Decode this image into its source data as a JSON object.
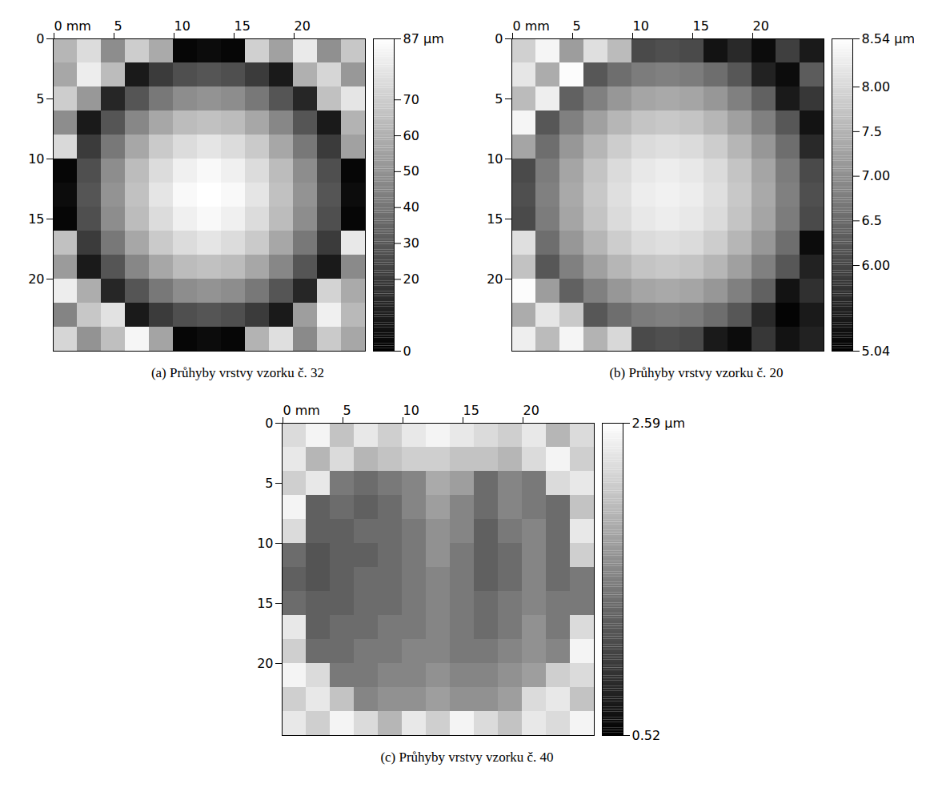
{
  "chart_data": [
    {
      "type": "heatmap",
      "title": "(a) Průhyby vrstvy vzorku č. 32",
      "x": [
        1,
        3,
        5,
        7,
        9,
        11,
        13,
        15,
        17,
        19,
        21,
        23,
        25
      ],
      "y": [
        1,
        3,
        5,
        7,
        9,
        11,
        13,
        15,
        17,
        19,
        21,
        23,
        25
      ],
      "xlim": [
        0,
        26
      ],
      "ylim": [
        0,
        26
      ],
      "xticks": [
        {
          "value": 0,
          "label": "0 mm"
        },
        5,
        10,
        15,
        20
      ],
      "yticks": [
        0,
        5,
        10,
        15,
        20
      ],
      "z": [
        [
          62,
          75,
          48,
          70,
          58,
          2,
          4,
          2,
          71,
          55,
          80,
          49,
          68
        ],
        [
          57,
          81,
          64,
          9,
          20,
          27,
          29,
          27,
          20,
          9,
          60,
          73,
          52
        ],
        [
          70,
          52,
          13,
          29,
          41,
          48,
          50,
          48,
          41,
          29,
          13,
          66,
          78
        ],
        [
          48,
          9,
          29,
          46,
          57,
          64,
          66,
          64,
          57,
          46,
          29,
          9,
          61
        ],
        [
          74,
          20,
          41,
          57,
          69,
          75,
          78,
          75,
          69,
          57,
          41,
          20,
          55
        ],
        [
          2,
          27,
          48,
          64,
          75,
          82,
          85,
          82,
          75,
          64,
          48,
          27,
          2
        ],
        [
          4,
          29,
          50,
          66,
          78,
          85,
          87,
          85,
          78,
          66,
          50,
          29,
          4
        ],
        [
          2,
          27,
          48,
          64,
          75,
          82,
          85,
          82,
          75,
          64,
          48,
          27,
          2
        ],
        [
          66,
          20,
          41,
          57,
          69,
          75,
          78,
          75,
          69,
          57,
          41,
          20,
          79
        ],
        [
          53,
          9,
          29,
          46,
          57,
          64,
          66,
          64,
          57,
          46,
          29,
          9,
          47
        ],
        [
          81,
          59,
          13,
          29,
          41,
          48,
          50,
          48,
          41,
          29,
          13,
          72,
          58
        ],
        [
          45,
          68,
          77,
          9,
          20,
          27,
          29,
          27,
          20,
          9,
          54,
          82,
          63
        ],
        [
          73,
          50,
          65,
          84,
          56,
          2,
          4,
          2,
          61,
          76,
          47,
          69,
          57
        ]
      ],
      "colorbar": {
        "range": [
          0,
          87
        ],
        "colors": [
          "#000000",
          "#ffffff"
        ],
        "ticks": [
          0,
          20,
          30,
          40,
          50,
          60,
          70,
          {
            "value": 87,
            "label": "87 µm"
          }
        ]
      }
    },
    {
      "type": "heatmap",
      "title": "(b) Průhyby vrstvy vzorku č. 20",
      "x": [
        1,
        3,
        5,
        7,
        9,
        11,
        13,
        15,
        17,
        19,
        21,
        23,
        25
      ],
      "y": [
        1,
        3,
        5,
        7,
        9,
        11,
        13,
        15,
        17,
        19,
        21,
        23,
        25
      ],
      "xlim": [
        0,
        26
      ],
      "ylim": [
        0,
        26
      ],
      "xticks": [
        {
          "value": 0,
          "label": "0 mm"
        },
        5,
        10,
        15,
        20
      ],
      "yticks": [
        0,
        5,
        10,
        15,
        20
      ],
      "z": [
        [
          7.9,
          8.4,
          7.2,
          8.1,
          7.6,
          6.06,
          6.12,
          6.06,
          5.3,
          5.6,
          5.2,
          5.9,
          5.4
        ],
        [
          8.2,
          7.4,
          8.5,
          6.24,
          6.55,
          6.74,
          6.8,
          6.74,
          6.55,
          6.24,
          5.5,
          5.2,
          6.3
        ],
        [
          7.6,
          8.3,
          6.37,
          6.8,
          7.11,
          7.3,
          7.36,
          7.3,
          7.11,
          6.8,
          6.37,
          5.4,
          5.8
        ],
        [
          8.4,
          6.24,
          6.8,
          7.23,
          7.54,
          7.73,
          7.79,
          7.73,
          7.54,
          7.23,
          6.8,
          6.24,
          5.3
        ],
        [
          7.3,
          6.55,
          7.11,
          7.54,
          7.85,
          8.04,
          8.1,
          8.04,
          7.85,
          7.54,
          7.11,
          6.55,
          5.6
        ],
        [
          6.06,
          6.74,
          7.3,
          7.73,
          8.04,
          8.23,
          8.29,
          8.23,
          8.04,
          7.73,
          7.3,
          6.74,
          6.06
        ],
        [
          6.12,
          6.8,
          7.36,
          7.79,
          8.1,
          8.29,
          8.35,
          8.29,
          8.1,
          7.79,
          7.36,
          6.8,
          6.12
        ],
        [
          6.06,
          6.74,
          7.3,
          7.73,
          8.04,
          8.23,
          8.29,
          8.23,
          8.04,
          7.73,
          7.3,
          6.74,
          6.06
        ],
        [
          8.1,
          6.55,
          7.11,
          7.54,
          7.85,
          8.04,
          8.1,
          8.04,
          7.85,
          7.54,
          7.11,
          6.55,
          5.2
        ],
        [
          7.7,
          6.24,
          6.8,
          7.23,
          7.54,
          7.73,
          7.79,
          7.73,
          7.54,
          7.23,
          6.8,
          6.24,
          5.5
        ],
        [
          8.5,
          7.2,
          6.37,
          6.8,
          7.11,
          7.3,
          7.36,
          7.3,
          7.11,
          6.8,
          6.37,
          5.3,
          5.7
        ],
        [
          7.4,
          8.2,
          7.8,
          6.24,
          6.55,
          6.74,
          6.8,
          6.74,
          6.55,
          6.24,
          5.6,
          5.1,
          5.4
        ],
        [
          8.3,
          7.6,
          8.4,
          7.5,
          8.0,
          6.06,
          6.12,
          6.06,
          5.4,
          5.2,
          5.8,
          5.3,
          5.5
        ]
      ],
      "colorbar": {
        "range": [
          5.04,
          8.54
        ],
        "colors": [
          "#000000",
          "#ffffff"
        ],
        "ticks": [
          5.04,
          {
            "value": 6,
            "label": "6.00"
          },
          6.5,
          {
            "value": 7,
            "label": "7.00"
          },
          7.5,
          {
            "value": 8,
            "label": "8.00"
          },
          {
            "value": 8.54,
            "label": "8.54 µm"
          }
        ]
      }
    },
    {
      "type": "heatmap",
      "title": "(c) Průhyby vrstvy vzorku č. 40",
      "x": [
        1,
        3,
        5,
        7,
        9,
        11,
        13,
        15,
        17,
        19,
        21,
        23,
        25
      ],
      "y": [
        1,
        3,
        5,
        7,
        9,
        11,
        13,
        15,
        17,
        19,
        21,
        23,
        25
      ],
      "xlim": [
        0,
        26
      ],
      "ylim": [
        0,
        26
      ],
      "xticks": [
        {
          "value": 0,
          "label": "0 mm"
        },
        5,
        10,
        15,
        20
      ],
      "yticks": [
        0,
        5,
        10,
        15,
        20
      ],
      "z": [
        [
          2.3,
          2.5,
          2.1,
          2.4,
          2.2,
          2.4,
          2.5,
          2.4,
          2.3,
          2.2,
          2.4,
          2.0,
          2.3
        ],
        [
          2.4,
          2.0,
          2.3,
          2.0,
          2.1,
          2.2,
          2.2,
          2.1,
          2.1,
          2.0,
          2.3,
          2.5,
          2.2
        ],
        [
          2.2,
          2.4,
          1.5,
          1.4,
          1.5,
          1.6,
          1.9,
          1.8,
          1.4,
          1.6,
          1.5,
          2.3,
          2.4
        ],
        [
          2.5,
          1.3,
          1.4,
          1.3,
          1.4,
          1.6,
          1.8,
          1.6,
          1.4,
          1.6,
          1.5,
          1.4,
          2.1
        ],
        [
          2.3,
          1.3,
          1.3,
          1.4,
          1.4,
          1.5,
          1.7,
          1.6,
          1.3,
          1.5,
          1.6,
          1.4,
          2.4
        ],
        [
          1.4,
          1.2,
          1.3,
          1.3,
          1.4,
          1.5,
          1.7,
          1.5,
          1.3,
          1.4,
          1.6,
          1.4,
          2.2
        ],
        [
          1.3,
          1.2,
          1.3,
          1.4,
          1.4,
          1.5,
          1.6,
          1.5,
          1.3,
          1.4,
          1.6,
          1.4,
          1.5
        ],
        [
          1.4,
          1.3,
          1.3,
          1.4,
          1.4,
          1.5,
          1.6,
          1.5,
          1.4,
          1.5,
          1.6,
          1.5,
          1.5
        ],
        [
          2.4,
          1.3,
          1.4,
          1.4,
          1.5,
          1.5,
          1.6,
          1.5,
          1.4,
          1.5,
          1.7,
          1.5,
          2.3
        ],
        [
          2.2,
          1.4,
          1.4,
          1.5,
          1.5,
          1.6,
          1.6,
          1.5,
          1.5,
          1.6,
          1.7,
          1.6,
          2.5
        ],
        [
          2.5,
          2.3,
          1.5,
          1.5,
          1.6,
          1.6,
          1.7,
          1.6,
          1.6,
          1.7,
          1.8,
          2.2,
          2.3
        ],
        [
          2.2,
          2.4,
          2.1,
          1.6,
          1.7,
          1.7,
          1.8,
          1.7,
          1.7,
          1.8,
          2.3,
          2.4,
          2.1
        ],
        [
          2.4,
          2.2,
          2.5,
          2.3,
          2.0,
          2.4,
          2.2,
          2.5,
          2.3,
          2.1,
          2.4,
          2.3,
          2.5
        ]
      ],
      "colorbar": {
        "range": [
          0.52,
          2.59
        ],
        "colors": [
          "#000000",
          "#ffffff"
        ],
        "ticks": [
          0.52,
          {
            "value": 2.59,
            "label": "2.59 µm"
          }
        ]
      }
    }
  ]
}
